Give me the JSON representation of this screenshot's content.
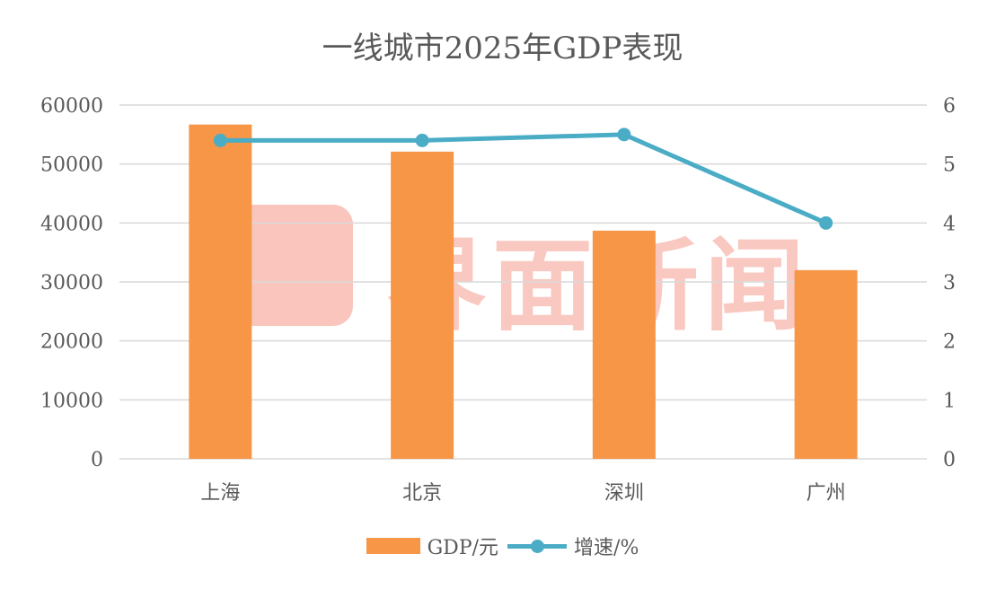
{
  "chart_data": {
    "type": "bar+line",
    "title": "一线城市2025年GDP表现",
    "categories": [
      "上海",
      "北京",
      "深圳",
      "广州"
    ],
    "series": [
      {
        "name": "GDP/元",
        "type": "bar",
        "axis": "left",
        "color": "#F79646",
        "values": [
          56700,
          52100,
          38700,
          32000
        ]
      },
      {
        "name": "增速/%",
        "type": "line",
        "axis": "right",
        "color": "#4BACC6",
        "values": [
          5.4,
          5.4,
          5.5,
          4.0
        ]
      }
    ],
    "y_left": {
      "min": 0,
      "max": 60000,
      "ticks": [
        "0",
        "10000",
        "20000",
        "30000",
        "40000",
        "50000",
        "60000"
      ]
    },
    "y_right": {
      "min": 0,
      "max": 6,
      "ticks": [
        "0",
        "1",
        "2",
        "3",
        "4",
        "5",
        "6"
      ]
    },
    "grid": true,
    "legend": "bottom"
  },
  "watermark": {
    "text": "界面新闻"
  }
}
